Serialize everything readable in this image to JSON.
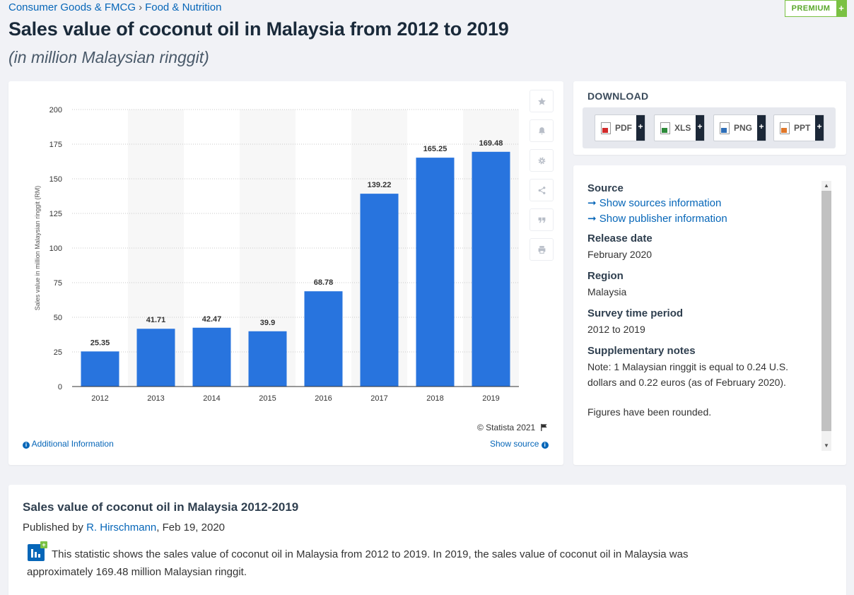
{
  "breadcrumb": {
    "category": "Consumer Goods & FMCG",
    "separator": "›",
    "subcategory": "Food & Nutrition"
  },
  "premium": {
    "label": "PREMIUM",
    "plus": "+"
  },
  "header": {
    "title": "Sales value of coconut oil in Malaysia from 2012 to 2019",
    "subtitle": "(in million Malaysian ringgit)"
  },
  "toolbar": {
    "icons": [
      "star-icon",
      "bell-icon",
      "gear-icon",
      "share-icon",
      "quote-icon",
      "print-icon"
    ]
  },
  "chart_data": {
    "type": "bar",
    "categories": [
      "2012",
      "2013",
      "2014",
      "2015",
      "2016",
      "2017",
      "2018",
      "2019"
    ],
    "values": [
      25.35,
      41.71,
      42.47,
      39.9,
      68.78,
      139.22,
      165.25,
      169.48
    ],
    "value_labels": [
      "25.35",
      "41.71",
      "42.47",
      "39.9",
      "68.78",
      "139.22",
      "165.25",
      "169.48"
    ],
    "ylabel": "Sales value in million Malaysian ringgit (RM)",
    "xlabel": "",
    "ylim": [
      0,
      200
    ],
    "yticks": [
      "0",
      "25",
      "50",
      "75",
      "100",
      "125",
      "150",
      "175",
      "200"
    ],
    "grid": true,
    "bar_color": "#2874de"
  },
  "chart_footer": {
    "copyright": "© Statista 2021",
    "additional_info": "Additional Information",
    "show_source": "Show source"
  },
  "download": {
    "title": "DOWNLOAD",
    "formats": [
      {
        "label": "PDF",
        "color": "#d22b2b"
      },
      {
        "label": "XLS",
        "color": "#2e8b3a"
      },
      {
        "label": "PNG",
        "color": "#2f6fb8"
      },
      {
        "label": "PPT",
        "color": "#e0782b"
      }
    ]
  },
  "info": {
    "source_heading": "Source",
    "source_link": "➞ Show sources information",
    "publisher_link": "➞ Show publisher information",
    "release_heading": "Release date",
    "release_value": "February 2020",
    "region_heading": "Region",
    "region_value": "Malaysia",
    "survey_heading": "Survey time period",
    "survey_value": "2012 to 2019",
    "notes_heading": "Supplementary notes",
    "notes_value": "Note: 1 Malaysian ringgit is equal to 0.24 U.S. dollars and 0.22 euros (as of February 2020).",
    "notes_value2": "Figures have been rounded."
  },
  "description": {
    "title": "Sales value of coconut oil in Malaysia 2012-2019",
    "published_prefix": "Published by ",
    "author": "R. Hirschmann",
    "date": ", Feb 19, 2020",
    "text": "This statistic shows the sales value of coconut oil in Malaysia from 2012 to 2019. In 2019, the sales value of coconut oil in Malaysia was approximately 169.48 million Malaysian ringgit."
  }
}
